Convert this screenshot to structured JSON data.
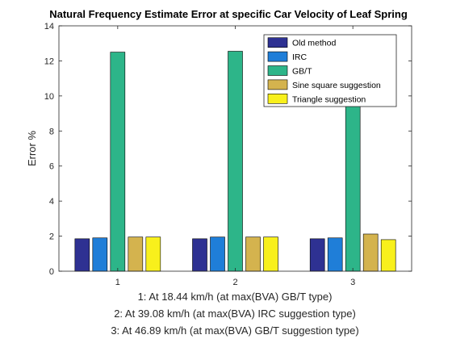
{
  "chart_data": {
    "type": "bar",
    "title": "Natural Frequency Estimate Error at specific Car Velocity of Leaf Spring",
    "ylabel": "Error %",
    "xlabel_lines": [
      "1: At 18.44 km/h (at max(BVA) GB/T type)",
      "2: At 39.08 km/h (at max(BVA) IRC suggestion type)",
      "3: At 46.89 km/h (at max(BVA) GB/T suggestion type)"
    ],
    "categories": [
      "1",
      "2",
      "3"
    ],
    "ylim": [
      0,
      14
    ],
    "yticks": [
      0,
      2,
      4,
      6,
      8,
      10,
      12,
      14
    ],
    "grid": false,
    "legend_position": "top-right",
    "series": [
      {
        "name": "Old method",
        "color": "#2E3192",
        "values": [
          1.85,
          1.85,
          1.85
        ]
      },
      {
        "name": "IRC",
        "color": "#1F7ED8",
        "values": [
          1.9,
          1.95,
          1.9
        ]
      },
      {
        "name": "GB/T",
        "color": "#2DB589",
        "values": [
          12.5,
          12.55,
          12.5
        ]
      },
      {
        "name": "Sine square suggestion",
        "color": "#D4B34E",
        "values": [
          1.95,
          1.95,
          2.12
        ]
      },
      {
        "name": "Triangle suggestion",
        "color": "#F8F01C",
        "values": [
          1.95,
          1.95,
          1.8
        ]
      }
    ]
  }
}
